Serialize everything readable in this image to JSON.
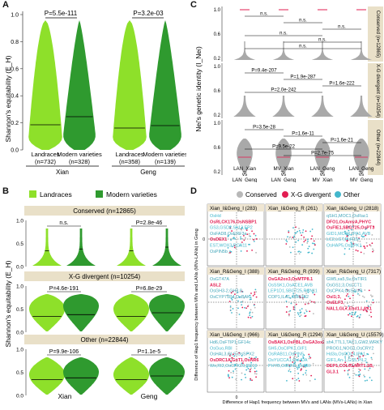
{
  "panelA": {
    "label": "A",
    "ylabel": "Shannon's equitability (E_H)",
    "yticks": [
      "0.0",
      "0.2",
      "0.4",
      "0.6",
      "0.8",
      "1.0"
    ],
    "pvals": [
      "P=5.5e-111",
      "P=3.2e-03"
    ],
    "groups": [
      {
        "name": "Xian",
        "cats": [
          {
            "name": "Landraces",
            "n": "(n=732)"
          },
          {
            "name": "Modern varieties",
            "n": "(n=328)"
          }
        ]
      },
      {
        "name": "Geng",
        "cats": [
          {
            "name": "Landraces",
            "n": "(n=358)"
          },
          {
            "name": "Modern varieties",
            "n": "(n=139)"
          }
        ]
      }
    ]
  },
  "panelB": {
    "label": "B",
    "legend": [
      "Landraces",
      "Modern varieties"
    ],
    "ylabel": "Shannon's equitability (E_H)",
    "yticks": [
      "0.0",
      "0.5",
      "1.0"
    ],
    "rows": [
      {
        "title": "Conserved (n=12865)",
        "p_xian": "n.s.",
        "p_geng": "P=2.8e-46"
      },
      {
        "title": "X-G divergent (n=10254)",
        "p_xian": "P=4.6e-191",
        "p_geng": "P=6.8e-29"
      },
      {
        "title": "Other (n=22844)",
        "p_xian": "P=9.9e-106",
        "p_geng": "P=1.1e-5"
      }
    ],
    "xlabels": [
      "Xian",
      "Geng"
    ]
  },
  "panelC": {
    "label": "C",
    "ylabel": "Nei's genetic identity (I_Nei)",
    "yticks": [
      "0.2",
      "0.6",
      "1.0"
    ],
    "rows": [
      {
        "side": "Conserved (n=12865)",
        "sigs": [
          "n.s.",
          "n.s.",
          "n.s.",
          "n.s.",
          "n.s.",
          "n.s."
        ]
      },
      {
        "side": "X-G divergent (n=10254)",
        "sigs": [
          "P=9.4e-207",
          "P=1.9e-287",
          "P=1.6e-222",
          "P=2.0e-242"
        ]
      },
      {
        "side": "Other (n=22844)",
        "sigs": [
          "P=3.5e-28",
          "P=1.6e-11",
          "P=1.6e-21",
          "P=9.5e-22",
          "P=2.7e-75"
        ]
      }
    ],
    "xlabels": [
      "LAN_Xian vs LAN_Geng",
      "MV_Xian vs LAN_Geng",
      "LAN_Geng vs MV_Xian",
      "LAN_Geng vs MV_Geng"
    ]
  },
  "panelD": {
    "label": "D",
    "legend": [
      "Conserved",
      "X-G divergent",
      "Other"
    ],
    "ylabel": "Difference of Hap1 frequency between MVs and LANs (MVs-LANs) in Geng",
    "xlabel": "Difference of Hap1 frequency between MVs and LANs (MVs-LANs) in Xian",
    "cells": [
      {
        "title": "Xian_I&Geng_I (283)",
        "lines": [
          [
            "OsHd",
            "b"
          ],
          [
            "OsRLCK176,OsNSBP1",
            "r"
          ],
          [
            "GS3,GSD2,Se13,EP2",
            "b"
          ],
          [
            "OsFAD8,OsERF3a",
            "g"
          ],
          [
            "OsDEX1",
            "r"
          ],
          [
            "EST,WOX3,RCN11",
            "b"
          ],
          [
            "OsPIN5b",
            "g"
          ]
        ]
      },
      {
        "title": "Xian_I&Geng_R (261)",
        "lines": [],
        "sub": "Xian_R&Geng_I (388)"
      },
      {
        "title": "Xian_I&Geng_U (2818)",
        "lines": [
          [
            "qSH1,MOC1,OsRac1",
            "g"
          ],
          [
            "DFO1,OsAmyA,PHYC",
            "r"
          ],
          [
            "OsFIE1,SBG725,OsPT3",
            "r"
          ],
          [
            "GID1,MOC1,IPA1,AVB",
            "b"
          ],
          [
            "LC2,LGT,FLR15",
            "b"
          ],
          [
            "OsHAP5,OsRPK1",
            "b"
          ]
        ]
      },
      {
        "title": "Xian_R&Geng_I (388)",
        "lines": [
          [
            "OsGT47A",
            "g"
          ],
          [
            "ASL2",
            "r"
          ],
          [
            "OsGH3-2,GH3.8,",
            "g"
          ],
          [
            "OsCYP71P4,OsBAK",
            "g"
          ]
        ]
      },
      {
        "title": "Xian_R&Geng_R (939)",
        "lines": [
          [
            "OsGA2ox3,OsMTP8.1",
            "r"
          ],
          [
            "OsSSK1,OsACE1,AVB",
            "b"
          ],
          [
            "LEP1D1,SBG725,RCN11",
            "b"
          ],
          [
            "COP1,ILA1,OsRUB2",
            "g"
          ]
        ]
      },
      {
        "title": "Xian_R&Geng_U (7317)",
        "lines": [
          [
            "GW5,xa5,Sv,OsTIR1",
            "g"
          ],
          [
            "OsGS1;3,OsLCT1",
            "g"
          ],
          [
            "OsCPK4,OsSAUR",
            "g"
          ],
          [
            "OsI1;3,",
            "r"
          ],
          [
            "OsELF3,",
            "r"
          ],
          [
            "NAL1,GL7,Ehd1,LAX1",
            "r"
          ]
        ]
      },
      {
        "title": "Xian_U&Geng_I (966)",
        "lines": [
          [
            "Hd6,OsFTIP1,GF14c",
            "g"
          ],
          [
            "OsGuo,RBI",
            "b"
          ],
          [
            "OsHAL3,GLS,OsSPX2",
            "g"
          ],
          [
            "OsDRC1A,GnT1,OsNR6",
            "r"
          ],
          [
            "Wx,RI2,OsCPK29,RR19",
            "b"
          ]
        ]
      },
      {
        "title": "Xian_U&Geng_R (1294)",
        "lines": [
          [
            "OsBAK1,OsFBL,OsGA3ox2",
            "r"
          ],
          [
            "SH5,OsCIPK1,GIF1",
            "b"
          ],
          [
            "OsRAB11,OsPIN5",
            "b"
          ],
          [
            "OsYUCCA1,OsHDA",
            "b"
          ],
          [
            "PHYB,OsPIN1,OsBEI",
            "b"
          ]
        ]
      },
      {
        "title": "Xian_U&Geng_U (15579)",
        "lines": [
          [
            "sh4,TTL1,TAC1,GW2,WRKY",
            "g"
          ],
          [
            "PROG1,NOG1,OsCRY2",
            "g"
          ],
          [
            "Hd3a,OsCOL4,IPA1,",
            "b"
          ],
          [
            "GIF1,An-1,GS5,PIL2",
            "b"
          ],
          [
            "DEP1,COL01,NRT1.1B,",
            "r"
          ],
          [
            "GL3.1",
            "r"
          ]
        ]
      }
    ],
    "colors": {
      "conserved": "#b8b8b8",
      "divergent": "#e21d52",
      "other": "#43b7cc",
      "titlebar": "#efe6d2"
    }
  },
  "colors": {
    "landrace": "#8ee02a",
    "modern": "#2f9a2f",
    "grey": "#a9a9a9",
    "panelbar": "#e9e0c8"
  }
}
